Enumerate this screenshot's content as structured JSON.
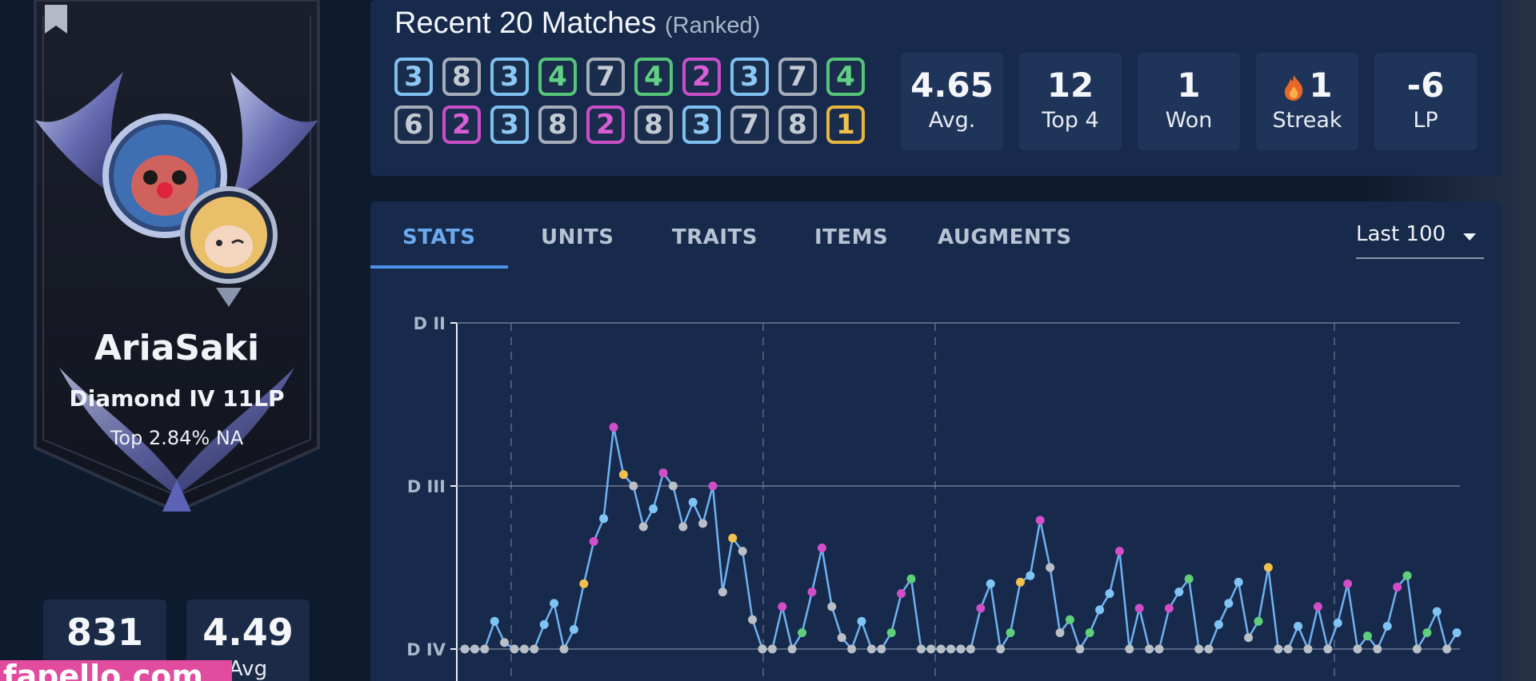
{
  "profile": {
    "username": "AriaSaki",
    "rank": "Diamond IV 11LP",
    "top_percent": "Top 2.84% NA",
    "stats": [
      {
        "value": "831",
        "label": ""
      },
      {
        "value": "4.49",
        "label": "Avg"
      }
    ],
    "watermark": "fapello.com"
  },
  "recent": {
    "title": "Recent 20 Matches",
    "subtitle": "(Ranked)",
    "placements": [
      {
        "value": "3",
        "color": "blue"
      },
      {
        "value": "8",
        "color": "gray"
      },
      {
        "value": "3",
        "color": "blue"
      },
      {
        "value": "4",
        "color": "green"
      },
      {
        "value": "7",
        "color": "gray"
      },
      {
        "value": "4",
        "color": "green"
      },
      {
        "value": "2",
        "color": "pink"
      },
      {
        "value": "3",
        "color": "blue"
      },
      {
        "value": "7",
        "color": "gray"
      },
      {
        "value": "4",
        "color": "green"
      },
      {
        "value": "6",
        "color": "gray"
      },
      {
        "value": "2",
        "color": "pink"
      },
      {
        "value": "3",
        "color": "blue"
      },
      {
        "value": "8",
        "color": "gray"
      },
      {
        "value": "2",
        "color": "pink"
      },
      {
        "value": "8",
        "color": "gray"
      },
      {
        "value": "3",
        "color": "blue"
      },
      {
        "value": "7",
        "color": "gray"
      },
      {
        "value": "8",
        "color": "gray"
      },
      {
        "value": "1",
        "color": "gold"
      }
    ],
    "kpis": [
      {
        "value": "4.65",
        "label": "Avg."
      },
      {
        "value": "12",
        "label": "Top 4"
      },
      {
        "value": "1",
        "label": "Won"
      },
      {
        "value": "1",
        "label": "Streak",
        "icon": "flame-icon"
      },
      {
        "value": "-6",
        "label": "LP"
      }
    ]
  },
  "tabs": {
    "items": [
      "STATS",
      "UNITS",
      "TRAITS",
      "ITEMS",
      "AUGMENTS"
    ],
    "active": "STATS",
    "range_select": "Last 100"
  },
  "colors": {
    "line": "#6fb2f0",
    "first": "#f0c14e",
    "second": "#d14ec8",
    "top4": "#5fcf7c",
    "top3": "#7fc4f4",
    "bottom": "#b9bec7"
  },
  "chart_data": {
    "type": "line",
    "ytick_labels": [
      "D II",
      "D III",
      "D IV"
    ],
    "y_levels": [
      2,
      3,
      4
    ],
    "xlabel": "",
    "ylabel": "",
    "points": [
      {
        "y": 4.0,
        "c": "bottom"
      },
      {
        "y": 4.0,
        "c": "bottom"
      },
      {
        "y": 4.0,
        "c": "bottom"
      },
      {
        "y": 3.83,
        "c": "top3"
      },
      {
        "y": 3.96,
        "c": "bottom"
      },
      {
        "y": 4.0,
        "c": "bottom"
      },
      {
        "y": 4.0,
        "c": "bottom"
      },
      {
        "y": 4.0,
        "c": "bottom"
      },
      {
        "y": 3.85,
        "c": "top3"
      },
      {
        "y": 3.72,
        "c": "top3"
      },
      {
        "y": 4.0,
        "c": "bottom"
      },
      {
        "y": 3.88,
        "c": "top3"
      },
      {
        "y": 3.6,
        "c": "first"
      },
      {
        "y": 3.34,
        "c": "second"
      },
      {
        "y": 3.2,
        "c": "top3"
      },
      {
        "y": 2.64,
        "c": "second"
      },
      {
        "y": 2.93,
        "c": "first"
      },
      {
        "y": 3.0,
        "c": "bottom"
      },
      {
        "y": 3.25,
        "c": "bottom"
      },
      {
        "y": 3.14,
        "c": "top3"
      },
      {
        "y": 2.92,
        "c": "second"
      },
      {
        "y": 3.0,
        "c": "bottom"
      },
      {
        "y": 3.25,
        "c": "bottom"
      },
      {
        "y": 3.1,
        "c": "top3"
      },
      {
        "y": 3.23,
        "c": "bottom"
      },
      {
        "y": 3.0,
        "c": "second"
      },
      {
        "y": 3.65,
        "c": "bottom"
      },
      {
        "y": 3.32,
        "c": "first"
      },
      {
        "y": 3.4,
        "c": "bottom"
      },
      {
        "y": 3.82,
        "c": "bottom"
      },
      {
        "y": 4.0,
        "c": "bottom"
      },
      {
        "y": 4.0,
        "c": "bottom"
      },
      {
        "y": 3.74,
        "c": "second"
      },
      {
        "y": 4.0,
        "c": "bottom"
      },
      {
        "y": 3.9,
        "c": "top4"
      },
      {
        "y": 3.65,
        "c": "second"
      },
      {
        "y": 3.38,
        "c": "second"
      },
      {
        "y": 3.74,
        "c": "bottom"
      },
      {
        "y": 3.93,
        "c": "bottom"
      },
      {
        "y": 4.0,
        "c": "bottom"
      },
      {
        "y": 3.83,
        "c": "top3"
      },
      {
        "y": 4.0,
        "c": "bottom"
      },
      {
        "y": 4.0,
        "c": "bottom"
      },
      {
        "y": 3.9,
        "c": "top4"
      },
      {
        "y": 3.66,
        "c": "second"
      },
      {
        "y": 3.57,
        "c": "top4"
      },
      {
        "y": 4.0,
        "c": "bottom"
      },
      {
        "y": 4.0,
        "c": "bottom"
      },
      {
        "y": 4.0,
        "c": "bottom"
      },
      {
        "y": 4.0,
        "c": "bottom"
      },
      {
        "y": 4.0,
        "c": "bottom"
      },
      {
        "y": 4.0,
        "c": "bottom"
      },
      {
        "y": 3.75,
        "c": "second"
      },
      {
        "y": 3.6,
        "c": "top3"
      },
      {
        "y": 4.0,
        "c": "bottom"
      },
      {
        "y": 3.9,
        "c": "top4"
      },
      {
        "y": 3.59,
        "c": "first"
      },
      {
        "y": 3.55,
        "c": "top3"
      },
      {
        "y": 3.21,
        "c": "second"
      },
      {
        "y": 3.5,
        "c": "bottom"
      },
      {
        "y": 3.9,
        "c": "bottom"
      },
      {
        "y": 3.82,
        "c": "top4"
      },
      {
        "y": 4.0,
        "c": "bottom"
      },
      {
        "y": 3.9,
        "c": "top4"
      },
      {
        "y": 3.76,
        "c": "top3"
      },
      {
        "y": 3.66,
        "c": "top3"
      },
      {
        "y": 3.4,
        "c": "second"
      },
      {
        "y": 4.0,
        "c": "bottom"
      },
      {
        "y": 3.75,
        "c": "second"
      },
      {
        "y": 4.0,
        "c": "bottom"
      },
      {
        "y": 4.0,
        "c": "bottom"
      },
      {
        "y": 3.75,
        "c": "second"
      },
      {
        "y": 3.65,
        "c": "top3"
      },
      {
        "y": 3.57,
        "c": "top4"
      },
      {
        "y": 4.0,
        "c": "bottom"
      },
      {
        "y": 4.0,
        "c": "bottom"
      },
      {
        "y": 3.85,
        "c": "top3"
      },
      {
        "y": 3.72,
        "c": "top3"
      },
      {
        "y": 3.59,
        "c": "top3"
      },
      {
        "y": 3.93,
        "c": "bottom"
      },
      {
        "y": 3.83,
        "c": "top4"
      },
      {
        "y": 3.5,
        "c": "first"
      },
      {
        "y": 4.0,
        "c": "bottom"
      },
      {
        "y": 4.0,
        "c": "bottom"
      },
      {
        "y": 3.86,
        "c": "top3"
      },
      {
        "y": 4.0,
        "c": "bottom"
      },
      {
        "y": 3.74,
        "c": "second"
      },
      {
        "y": 4.0,
        "c": "bottom"
      },
      {
        "y": 3.84,
        "c": "top3"
      },
      {
        "y": 3.6,
        "c": "second"
      },
      {
        "y": 4.0,
        "c": "bottom"
      },
      {
        "y": 3.92,
        "c": "top4"
      },
      {
        "y": 4.0,
        "c": "bottom"
      },
      {
        "y": 3.86,
        "c": "top3"
      },
      {
        "y": 3.62,
        "c": "second"
      },
      {
        "y": 3.55,
        "c": "top4"
      },
      {
        "y": 4.0,
        "c": "bottom"
      },
      {
        "y": 3.9,
        "c": "top4"
      },
      {
        "y": 3.77,
        "c": "top3"
      },
      {
        "y": 4.0,
        "c": "bottom"
      },
      {
        "y": 3.9,
        "c": "top3"
      }
    ]
  }
}
